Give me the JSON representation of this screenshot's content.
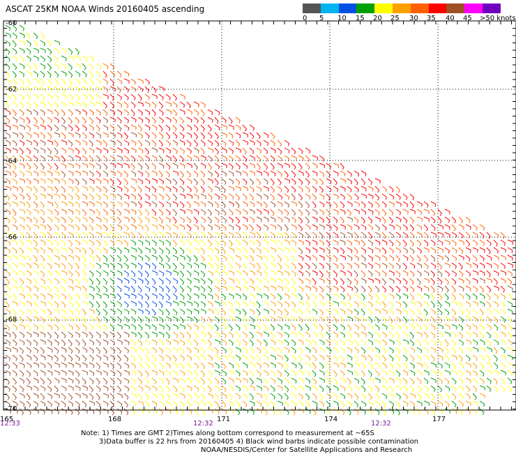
{
  "title": "ASCAT 25KM NOAA Winds 20160405 ascending",
  "legend": {
    "colors": [
      "#555555",
      "#00b4f0",
      "#0050e6",
      "#00a000",
      "#ffff00",
      "#ffa000",
      "#ff6000",
      "#ff0000",
      "#a05028",
      "#ff00ff",
      "#7000c0"
    ],
    "labels": [
      "0",
      "5",
      "10",
      "15",
      "20",
      "25",
      "30",
      "35",
      "40",
      "45",
      ">50 knots"
    ]
  },
  "map": {
    "lon_labels": [
      "165",
      "168",
      "171",
      "174",
      "177"
    ],
    "lat_labels": [
      "-60",
      "-62",
      "-64",
      "-66",
      "-68",
      "-70"
    ],
    "time_labels": [
      "12:33",
      "12:32",
      "12:32"
    ]
  },
  "notes": {
    "line1": "Note: 1) Times are GMT 2)Times along bottom correspond to measurement at ~65S",
    "line2": "3)Data buffer is 22 hrs from 20160405 4) Black wind barbs indicate possible contamination",
    "line3": "NOAA/NESDIS/Center for Satellite Applications and Research"
  }
}
